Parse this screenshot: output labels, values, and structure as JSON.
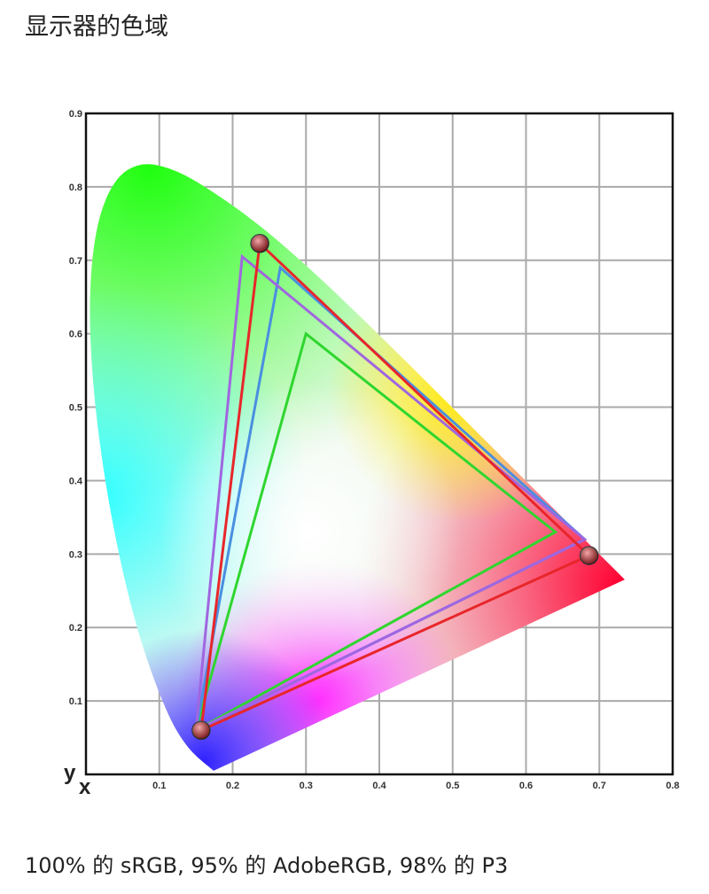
{
  "title": "显示器的色域",
  "caption": "100% 的 sRGB, 95% 的 AdobeRGB, 98% 的 P3",
  "chart_data": {
    "type": "scatter",
    "title": "",
    "xlabel": "x",
    "ylabel": "y",
    "xlim": [
      0,
      0.8
    ],
    "ylim": [
      0,
      0.9
    ],
    "grid": true,
    "xticks": [
      "0.1",
      "0.2",
      "0.3",
      "0.4",
      "0.5",
      "0.6",
      "0.7",
      "0.8"
    ],
    "yticks": [
      "0.1",
      "0.2",
      "0.3",
      "0.4",
      "0.5",
      "0.6",
      "0.7",
      "0.8",
      "0.9"
    ],
    "spectral_locus": [
      [
        0.1741,
        0.005
      ],
      [
        0.144,
        0.0297
      ],
      [
        0.1241,
        0.0578
      ],
      [
        0.1096,
        0.0868
      ],
      [
        0.0913,
        0.1327
      ],
      [
        0.0687,
        0.2007
      ],
      [
        0.0454,
        0.295
      ],
      [
        0.0235,
        0.4127
      ],
      [
        0.0082,
        0.5384
      ],
      [
        0.0039,
        0.6548
      ],
      [
        0.0139,
        0.7502
      ],
      [
        0.0389,
        0.812
      ],
      [
        0.0743,
        0.8338
      ],
      [
        0.1142,
        0.8262
      ],
      [
        0.1547,
        0.8059
      ],
      [
        0.2296,
        0.7543
      ],
      [
        0.3016,
        0.6923
      ],
      [
        0.3731,
        0.6245
      ],
      [
        0.4441,
        0.5547
      ],
      [
        0.5125,
        0.4866
      ],
      [
        0.5752,
        0.4242
      ],
      [
        0.627,
        0.3725
      ],
      [
        0.6915,
        0.3083
      ],
      [
        0.7347,
        0.2653
      ]
    ],
    "series": [
      {
        "color": "#e8262a",
        "points": [
          [
            0.237,
            0.723
          ],
          [
            0.686,
            0.298
          ],
          [
            0.157,
            0.06
          ]
        ],
        "markers": true
      },
      {
        "color": "#a066e0",
        "points": [
          [
            0.213,
            0.705
          ],
          [
            0.68,
            0.32
          ],
          [
            0.15,
            0.06
          ]
        ]
      },
      {
        "color": "#4a8fe0",
        "points": [
          [
            0.265,
            0.69
          ],
          [
            0.68,
            0.32
          ],
          [
            0.15,
            0.06
          ]
        ]
      },
      {
        "color": "#2fd62f",
        "points": [
          [
            0.3,
            0.6
          ],
          [
            0.64,
            0.33
          ],
          [
            0.15,
            0.06
          ]
        ]
      }
    ]
  }
}
